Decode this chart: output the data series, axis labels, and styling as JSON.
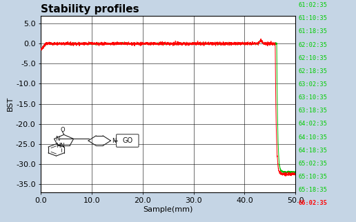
{
  "title": "Stability profiles",
  "xlabel": "Sample(mm)",
  "ylabel": "BST",
  "xlim": [
    0.0,
    50.0
  ],
  "ylim": [
    -37.0,
    7.0
  ],
  "yticks": [
    5.0,
    0.0,
    -5.0,
    -10.0,
    -15.0,
    -20.0,
    -25.0,
    -30.0,
    -35.0
  ],
  "xticks": [
    0.0,
    10.0,
    20.0,
    30.0,
    40.0,
    50.0
  ],
  "background_color": "#c5d5e5",
  "plot_bg_color": "#ffffff",
  "grid_color": "#000000",
  "line_color_red": "#ff0000",
  "line_color_green": "#00bb00",
  "title_color": "#000000",
  "title_fontsize": 11,
  "axis_label_fontsize": 8,
  "tick_fontsize": 8,
  "sidebar_times": [
    "61:02:35",
    "61:10:35",
    "61:18:35",
    "62:02:35",
    "62:10:35",
    "62:18:35",
    "63:02:35",
    "63:10:35",
    "63:18:35",
    "64:02:35",
    "64:10:35",
    "64:18:35",
    "65:02:35",
    "65:10:35",
    "65:18:35",
    "66:02:35"
  ],
  "sidebar_color": "#00cc00",
  "sidebar_last_color": "#ff0000",
  "drop_x": 46.0,
  "drop_y_red": -32.5,
  "drop_y_green": -32.0,
  "noise_amp_red": 0.18,
  "noise_amp_green": 0.1
}
